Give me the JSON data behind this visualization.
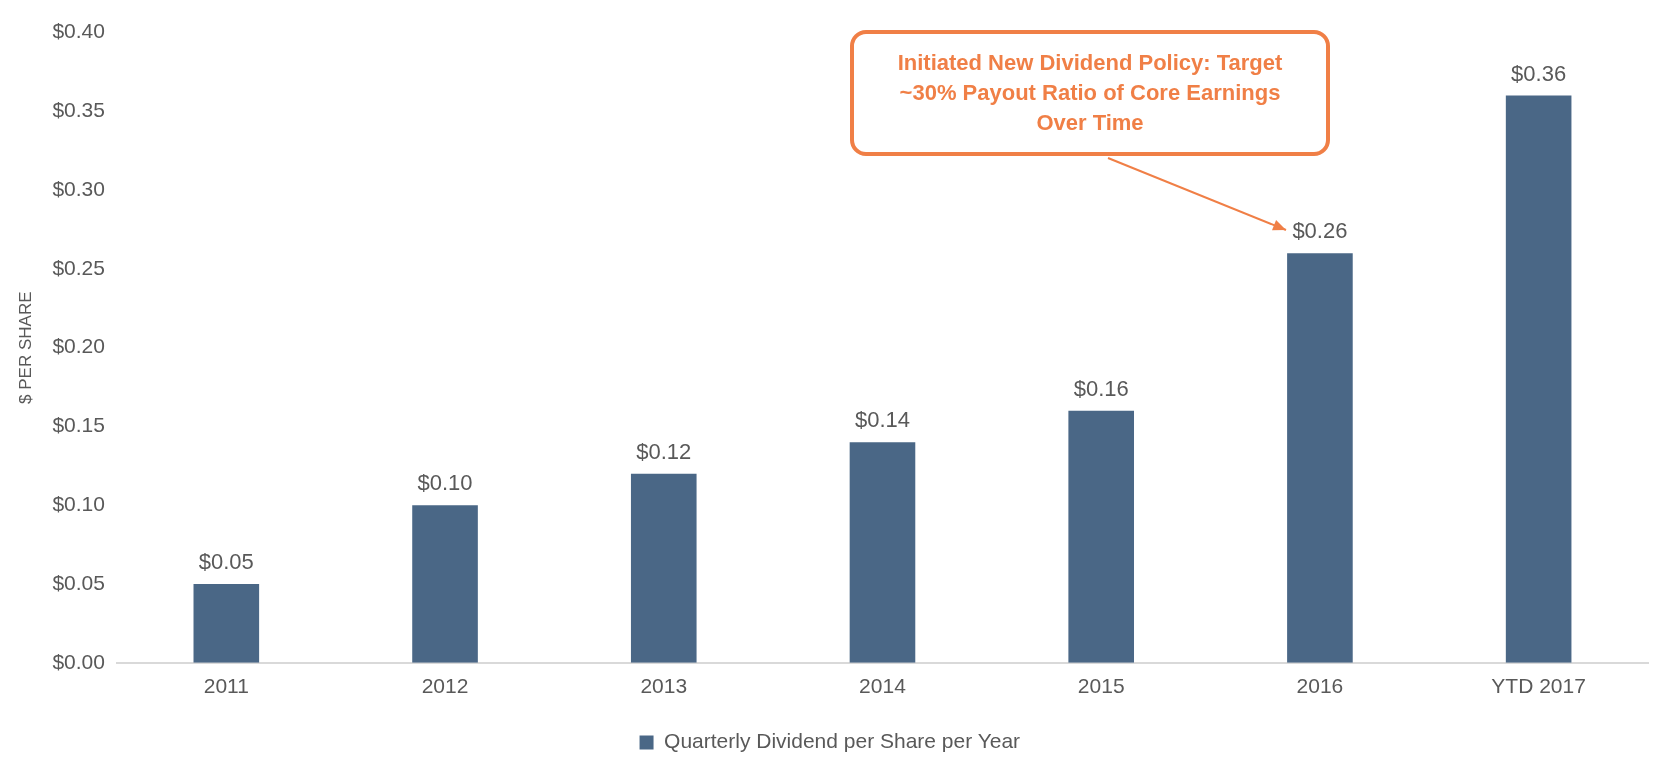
{
  "chart_data": {
    "type": "bar",
    "ylabel": "$ PER SHARE",
    "categories": [
      "2011",
      "2012",
      "2013",
      "2014",
      "2015",
      "2016",
      "YTD 2017"
    ],
    "series": [
      {
        "name": "Quarterly Dividend per Share per Year",
        "color": "#4a6786",
        "values": [
          0.05,
          0.1,
          0.12,
          0.14,
          0.16,
          0.26,
          0.36
        ],
        "value_labels": [
          "$0.05",
          "$0.10",
          "$0.12",
          "$0.14",
          "$0.16",
          "$0.26",
          "$0.36"
        ]
      }
    ],
    "ylim": [
      0,
      0.4
    ],
    "yticks": [
      {
        "value": 0,
        "label": "$0.00"
      },
      {
        "value": 0.05,
        "label": "$0.05"
      },
      {
        "value": 0.1,
        "label": "$0.10"
      },
      {
        "value": 0.15,
        "label": "$0.15"
      },
      {
        "value": 0.2,
        "label": "$0.20"
      },
      {
        "value": 0.25,
        "label": "$0.25"
      },
      {
        "value": 0.3,
        "label": "$0.30"
      },
      {
        "value": 0.35,
        "label": "$0.35"
      },
      {
        "value": 0.4,
        "label": "$0.40"
      }
    ],
    "grid": false,
    "legend": "bottom",
    "annotations": [
      "Initiated New Dividend Policy: Target ~30% Payout Ratio of Core Earnings Over Time"
    ]
  }
}
